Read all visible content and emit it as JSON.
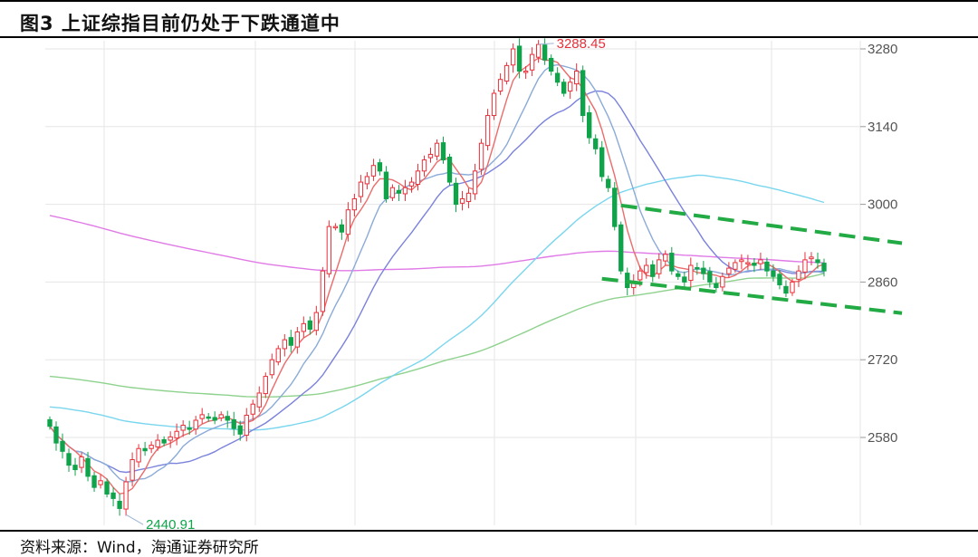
{
  "header": {
    "title": "图3  上证综指目前仍处于下跌通道中"
  },
  "footer": {
    "source": "资料来源：Wind，海通证券研究所"
  },
  "colors": {
    "up": "#e8303a",
    "down": "#0fa34a",
    "ma5": "#ec6b6b",
    "ma10": "#8aaad8",
    "ma20": "#7a82dc",
    "ma60": "#7ad6ee",
    "ma120": "#8ed28e",
    "ma250": "#e07ae6",
    "channel": "#22aa44",
    "grid": "#e6e6e6"
  },
  "chart_data": {
    "type": "candlestick",
    "title": "上证综指目前仍处于下跌通道中",
    "ylim": [
      2440,
      3300
    ],
    "yticks": [
      3280,
      3140,
      3000,
      2860,
      2720,
      2580
    ],
    "grid": true,
    "annotations": [
      {
        "text": "3288.45",
        "index": 77,
        "value": 3288.45,
        "color": "#e8303a"
      },
      {
        "text": "2440.91",
        "index": 12,
        "value": 2440.91,
        "color": "#0fa34a"
      }
    ],
    "channel_upper": [
      {
        "index": 90,
        "value": 2998
      },
      {
        "index": 130,
        "value": 2930
      }
    ],
    "channel_lower": [
      {
        "index": 87,
        "value": 2866
      },
      {
        "index": 130,
        "value": 2804
      }
    ],
    "ma250_start": 2980,
    "ma120_start": 2690,
    "ma60_start": 2635,
    "closes": [
      2600,
      2570,
      2555,
      2530,
      2522,
      2545,
      2510,
      2490,
      2502,
      2478,
      2470,
      2452,
      2500,
      2540,
      2560,
      2556,
      2566,
      2575,
      2570,
      2581,
      2591,
      2602,
      2596,
      2611,
      2621,
      2616,
      2611,
      2621,
      2611,
      2596,
      2586,
      2620,
      2640,
      2660,
      2690,
      2720,
      2740,
      2756,
      2746,
      2770,
      2785,
      2775,
      2805,
      2880,
      2960,
      2960,
      2950,
      2990,
      3010,
      3040,
      3050,
      3070,
      3060,
      3010,
      3030,
      3020,
      3030,
      3040,
      3060,
      3080,
      3090,
      3110,
      3080,
      3040,
      3000,
      3010,
      3020,
      3060,
      3110,
      3160,
      3200,
      3225,
      3250,
      3280,
      3240,
      3240,
      3270,
      3288,
      3260,
      3240,
      3220,
      3200,
      3220,
      3240,
      3160,
      3120,
      3100,
      3050,
      3030,
      2960,
      2880,
      2850,
      2860,
      2880,
      2890,
      2870,
      2900,
      2910,
      2880,
      2870,
      2860,
      2890,
      2885,
      2875,
      2860,
      2850,
      2870,
      2885,
      2895,
      2900,
      2895,
      2890,
      2900,
      2880,
      2870,
      2855,
      2840,
      2860,
      2880,
      2900,
      2905,
      2895,
      2880
    ]
  }
}
